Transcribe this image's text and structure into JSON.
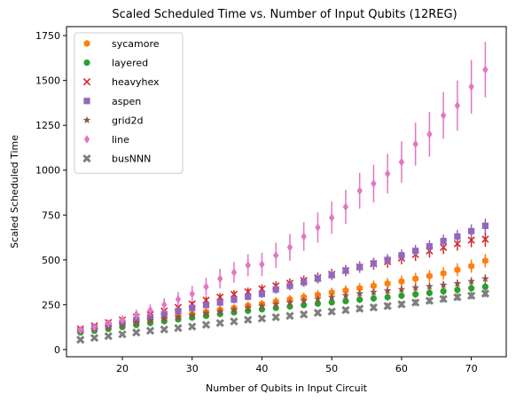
{
  "chart_data": {
    "type": "scatter",
    "title": "Scaled Scheduled Time vs. Number of Input Qubits (12REG)",
    "xlabel": "Number of Qubits in Input Circuit",
    "ylabel": "Scaled Scheduled Time",
    "xlim": [
      12,
      75
    ],
    "ylim": [
      -40,
      1800
    ],
    "xticks": [
      20,
      30,
      40,
      50,
      60,
      70
    ],
    "yticks": [
      0,
      250,
      500,
      750,
      1000,
      1250,
      1500,
      1750
    ],
    "grid": false,
    "legend_position": "top-left",
    "x": [
      14,
      16,
      18,
      20,
      22,
      24,
      26,
      28,
      30,
      32,
      34,
      36,
      38,
      40,
      42,
      44,
      46,
      48,
      50,
      52,
      54,
      56,
      58,
      60,
      62,
      64,
      66,
      68,
      70,
      72
    ],
    "series": [
      {
        "name": "sycamore",
        "color": "#ff7f0e",
        "marker": "hexagon",
        "values": [
          100,
          112,
          122,
          135,
          148,
          160,
          172,
          185,
          198,
          210,
          222,
          232,
          245,
          255,
          268,
          280,
          292,
          305,
          318,
          330,
          342,
          355,
          368,
          380,
          395,
          410,
          425,
          445,
          465,
          495
        ],
        "errors": [
          10,
          10,
          12,
          12,
          14,
          14,
          15,
          16,
          17,
          18,
          19,
          20,
          21,
          22,
          23,
          24,
          25,
          26,
          27,
          28,
          29,
          30,
          31,
          32,
          33,
          34,
          35,
          36,
          37,
          38
        ]
      },
      {
        "name": "layered",
        "color": "#2ca02c",
        "marker": "circle",
        "values": [
          95,
          105,
          115,
          125,
          137,
          148,
          158,
          168,
          178,
          188,
          198,
          207,
          216,
          224,
          232,
          240,
          248,
          256,
          263,
          270,
          278,
          285,
          292,
          300,
          308,
          316,
          325,
          333,
          342,
          350
        ],
        "errors": [
          8,
          8,
          9,
          9,
          10,
          10,
          11,
          11,
          12,
          12,
          13,
          13,
          14,
          14,
          15,
          15,
          16,
          16,
          17,
          17,
          18,
          18,
          19,
          19,
          20,
          20,
          21,
          21,
          22,
          22
        ]
      },
      {
        "name": "heavyhex",
        "color": "#d62728",
        "marker": "x",
        "values": [
          115,
          132,
          150,
          165,
          180,
          195,
          215,
          235,
          255,
          275,
          292,
          308,
          322,
          338,
          355,
          370,
          385,
          400,
          420,
          440,
          460,
          478,
          490,
          510,
          530,
          550,
          570,
          590,
          610,
          615
        ],
        "errors": [
          12,
          13,
          14,
          15,
          16,
          17,
          18,
          19,
          20,
          21,
          22,
          23,
          24,
          25,
          26,
          27,
          28,
          29,
          30,
          31,
          32,
          33,
          34,
          35,
          36,
          37,
          38,
          39,
          40,
          42
        ]
      },
      {
        "name": "aspen",
        "color": "#9467bd",
        "marker": "square",
        "values": [
          105,
          120,
          135,
          150,
          165,
          180,
          198,
          215,
          232,
          248,
          262,
          278,
          295,
          310,
          335,
          355,
          375,
          395,
          415,
          440,
          460,
          480,
          500,
          525,
          550,
          575,
          605,
          630,
          660,
          690
        ],
        "errors": [
          10,
          11,
          12,
          13,
          14,
          15,
          16,
          17,
          18,
          19,
          20,
          21,
          22,
          23,
          24,
          25,
          26,
          27,
          28,
          29,
          30,
          31,
          32,
          33,
          34,
          35,
          36,
          37,
          38,
          40
        ]
      },
      {
        "name": "grid2d",
        "color": "#8c564b",
        "marker": "star",
        "values": [
          105,
          115,
          125,
          138,
          150,
          162,
          172,
          182,
          192,
          202,
          212,
          222,
          232,
          242,
          252,
          262,
          272,
          282,
          292,
          302,
          312,
          320,
          328,
          335,
          345,
          352,
          360,
          368,
          380,
          395
        ],
        "errors": [
          9,
          9,
          10,
          10,
          11,
          11,
          12,
          12,
          13,
          13,
          14,
          14,
          15,
          15,
          16,
          16,
          17,
          17,
          18,
          18,
          19,
          19,
          20,
          20,
          21,
          21,
          22,
          22,
          23,
          24
        ]
      },
      {
        "name": "line",
        "color": "#e377c2",
        "marker": "diamond",
        "values": [
          110,
          125,
          145,
          165,
          195,
          220,
          250,
          280,
          310,
          350,
          395,
          430,
          470,
          475,
          525,
          570,
          630,
          680,
          735,
          795,
          885,
          925,
          980,
          1045,
          1145,
          1200,
          1305,
          1360,
          1465,
          1560
        ],
        "errors": [
          18,
          20,
          22,
          25,
          28,
          32,
          36,
          40,
          45,
          50,
          55,
          58,
          62,
          65,
          70,
          75,
          80,
          85,
          90,
          95,
          100,
          105,
          110,
          115,
          120,
          125,
          130,
          140,
          150,
          155
        ]
      },
      {
        "name": "busNNN",
        "color": "#7f7f7f",
        "marker": "xfilled",
        "values": [
          55,
          65,
          75,
          85,
          95,
          105,
          112,
          120,
          128,
          138,
          148,
          157,
          166,
          173,
          180,
          188,
          196,
          205,
          212,
          220,
          228,
          235,
          243,
          252,
          262,
          272,
          282,
          292,
          300,
          312
        ],
        "errors": [
          6,
          6,
          7,
          7,
          8,
          8,
          9,
          9,
          10,
          10,
          11,
          11,
          12,
          12,
          13,
          13,
          14,
          14,
          15,
          15,
          16,
          16,
          17,
          17,
          18,
          18,
          19,
          19,
          20,
          20
        ]
      }
    ]
  }
}
